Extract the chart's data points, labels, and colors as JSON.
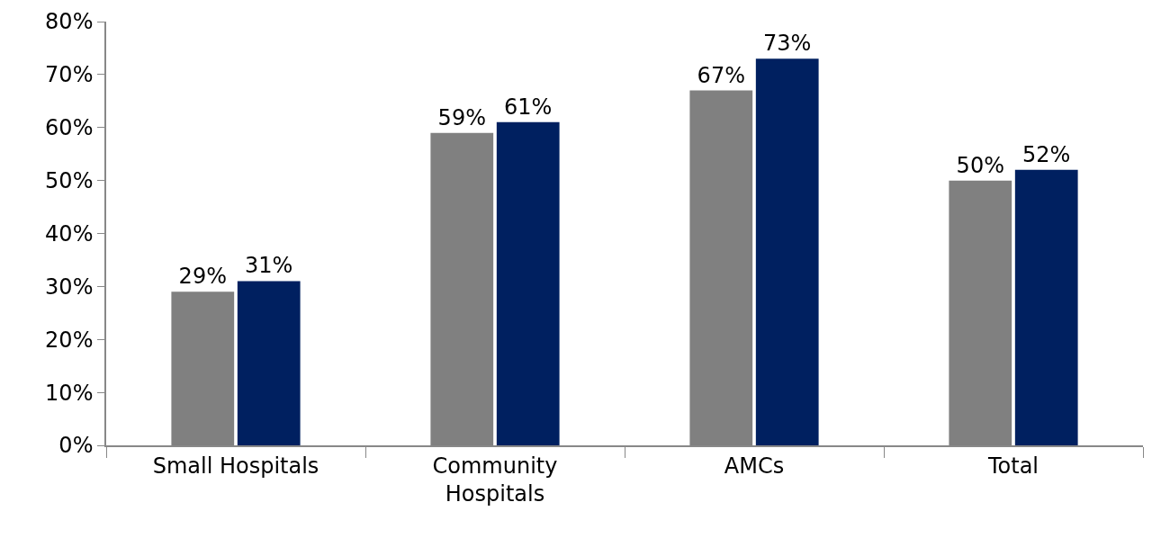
{
  "chart_data": {
    "type": "bar",
    "categories": [
      "Small Hospitals",
      "Community Hospitals",
      "AMCs",
      "Total"
    ],
    "series": [
      {
        "color": "#808080",
        "values": [
          29,
          59,
          67,
          50
        ],
        "value_labels": [
          "29%",
          "59%",
          "67%",
          "50%"
        ]
      },
      {
        "color": "#002060",
        "values": [
          31,
          61,
          73,
          52
        ],
        "value_labels": [
          "31%",
          "61%",
          "73%",
          "52%"
        ]
      }
    ],
    "ylim": [
      0,
      80
    ],
    "yticks": [
      {
        "value": 0,
        "label": "0%"
      },
      {
        "value": 10,
        "label": "10%"
      },
      {
        "value": 20,
        "label": "20%"
      },
      {
        "value": 30,
        "label": "30%"
      },
      {
        "value": 40,
        "label": "40%"
      },
      {
        "value": 50,
        "label": "50%"
      },
      {
        "value": 60,
        "label": "60%"
      },
      {
        "value": 70,
        "label": "70%"
      },
      {
        "value": 80,
        "label": "80%"
      }
    ],
    "orientation": "vertical"
  }
}
